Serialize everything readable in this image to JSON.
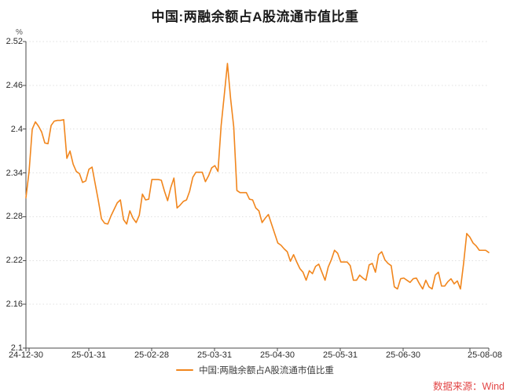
{
  "header": {
    "title": "中国:两融余额占A股流通市值比重"
  },
  "chart": {
    "unit_label": "%",
    "legend_label": "中国:两融余额占A股流通市值比重",
    "source_label": "数据来源：Wind",
    "colors": {
      "line": "#f1861d",
      "source_text": "#e24545",
      "axis": "#4a4a4a",
      "grid": "#e0e0e0",
      "title_text": "#1c1c1c",
      "tick_text": "#2b2b2b"
    }
  },
  "chart_data": {
    "type": "line",
    "title": "中国:两融余额占A股流通市值比重",
    "unit": "%",
    "x_tick_labels": [
      "24-12-30",
      "25-01-31",
      "25-02-28",
      "25-03-31",
      "25-04-30",
      "25-05-31",
      "25-06-30",
      "25-08-08"
    ],
    "y_tick_labels": [
      "2.52",
      "2.46",
      "2.4",
      "2.34",
      "2.28",
      "2.22",
      "2.16",
      "2.1"
    ],
    "ylim": [
      2.1,
      2.52
    ],
    "grid": "horizontal-dotted",
    "legend_position": "bottom-center",
    "series": [
      {
        "name": "中国:两融余额占A股流通市值比重",
        "color": "#f1861d",
        "values": [
          2.306,
          2.342,
          2.4,
          2.41,
          2.404,
          2.396,
          2.381,
          2.38,
          2.405,
          2.411,
          2.412,
          2.412,
          2.413,
          2.36,
          2.37,
          2.352,
          2.342,
          2.339,
          2.327,
          2.329,
          2.345,
          2.348,
          2.325,
          2.302,
          2.277,
          2.271,
          2.27,
          2.281,
          2.29,
          2.299,
          2.303,
          2.276,
          2.27,
          2.288,
          2.278,
          2.272,
          2.282,
          2.311,
          2.303,
          2.304,
          2.331,
          2.331,
          2.331,
          2.33,
          2.315,
          2.302,
          2.32,
          2.333,
          2.292,
          2.296,
          2.301,
          2.303,
          2.315,
          2.334,
          2.341,
          2.341,
          2.341,
          2.328,
          2.336,
          2.347,
          2.35,
          2.342,
          2.405,
          2.447,
          2.49,
          2.442,
          2.403,
          2.316,
          2.313,
          2.313,
          2.313,
          2.304,
          2.303,
          2.292,
          2.288,
          2.272,
          2.278,
          2.283,
          2.27,
          2.257,
          2.244,
          2.241,
          2.236,
          2.232,
          2.219,
          2.228,
          2.218,
          2.209,
          2.204,
          2.193,
          2.206,
          2.202,
          2.212,
          2.215,
          2.204,
          2.193,
          2.211,
          2.221,
          2.234,
          2.23,
          2.218,
          2.218,
          2.218,
          2.213,
          2.193,
          2.193,
          2.2,
          2.196,
          2.193,
          2.214,
          2.216,
          2.204,
          2.228,
          2.232,
          2.221,
          2.216,
          2.213,
          2.184,
          2.181,
          2.195,
          2.196,
          2.193,
          2.19,
          2.195,
          2.196,
          2.188,
          2.181,
          2.193,
          2.184,
          2.181,
          2.2,
          2.204,
          2.185,
          2.185,
          2.191,
          2.195,
          2.188,
          2.192,
          2.181,
          2.216,
          2.257,
          2.252,
          2.244,
          2.24,
          2.234,
          2.234,
          2.234,
          2.231
        ]
      }
    ]
  }
}
